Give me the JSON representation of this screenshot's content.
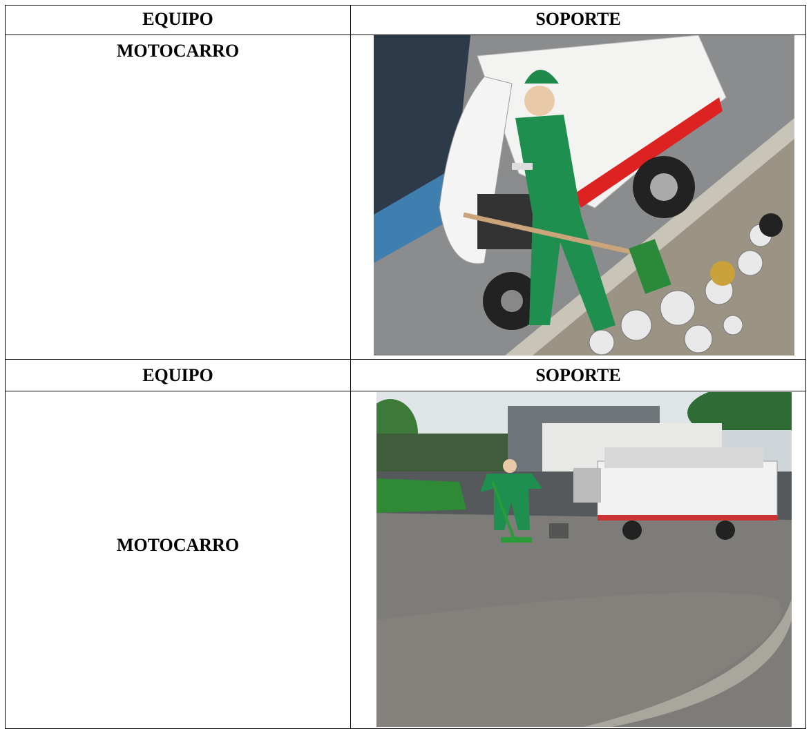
{
  "table": {
    "rows": [
      [
        "EQUIPO",
        "SOPORTE"
      ],
      [
        "MOTOCARRO"
      ],
      [
        "EQUIPO",
        "SOPORTE"
      ],
      [
        "MOTOCARRO"
      ]
    ]
  }
}
